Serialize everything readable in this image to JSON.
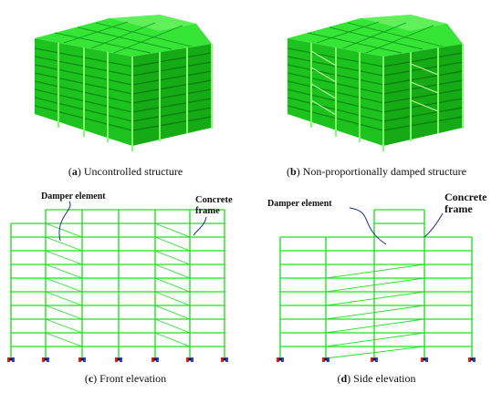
{
  "colors": {
    "frame": "#22e022",
    "frame_dark": "#0c9a12",
    "frame_light": "#6dff5a",
    "annotation": "#1e2c8c",
    "text": "#111111",
    "support_red": "#e21b1b",
    "support_blue": "#2b3fd6"
  },
  "panels": {
    "a": {
      "letter": "a",
      "caption": "Uncontrolled structure"
    },
    "b": {
      "letter": "b",
      "caption": "Non-proportionally damped structure"
    },
    "c": {
      "letter": "c",
      "caption": "Front elevation",
      "label_damper": "Damper element",
      "label_frame_line1": "Concrete",
      "label_frame_line2": "frame"
    },
    "d": {
      "letter": "d",
      "caption": "Side elevation",
      "label_damper": "Damper element",
      "label_frame_line1": "Concrete",
      "label_frame_line2": "frame"
    }
  }
}
